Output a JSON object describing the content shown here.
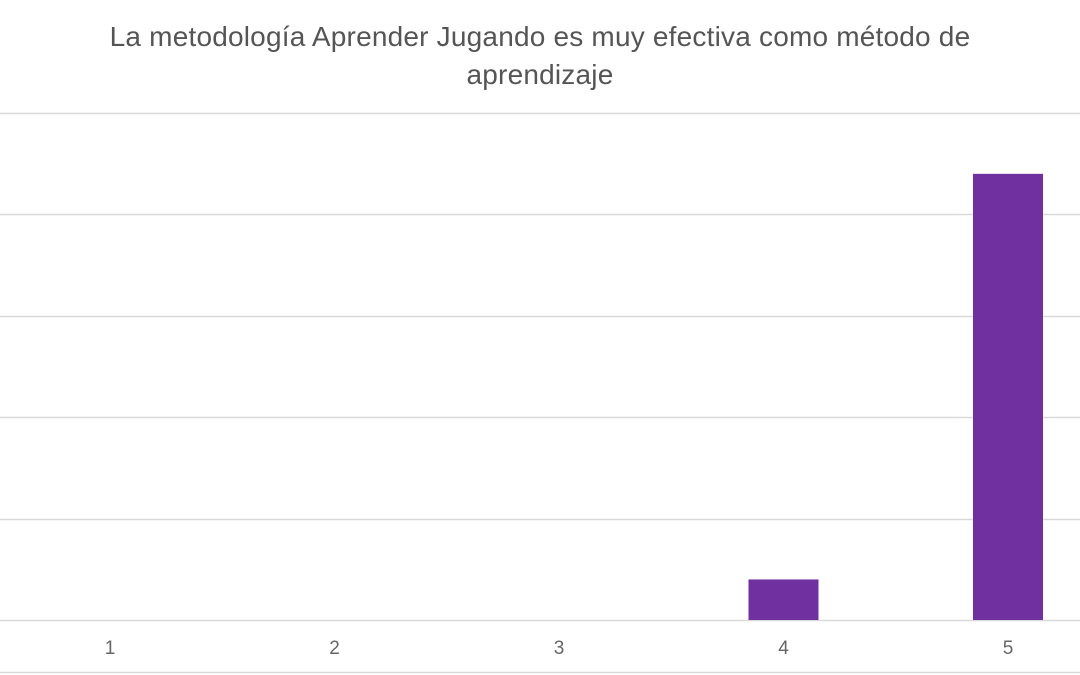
{
  "chart_data": {
    "type": "bar",
    "title": "La metodología Aprender Jugando es muy efectiva como método de aprendizaje",
    "categories": [
      "1",
      "2",
      "3",
      "4",
      "5"
    ],
    "values": [
      0,
      0,
      0,
      2,
      22
    ],
    "xlabel": "",
    "ylabel": "",
    "ylim": [
      0,
      25
    ],
    "y_gridline_step": 5,
    "grid": true,
    "legend": "none",
    "bar_color": "#7030A0",
    "gridline_color": "#d9d9d9"
  }
}
